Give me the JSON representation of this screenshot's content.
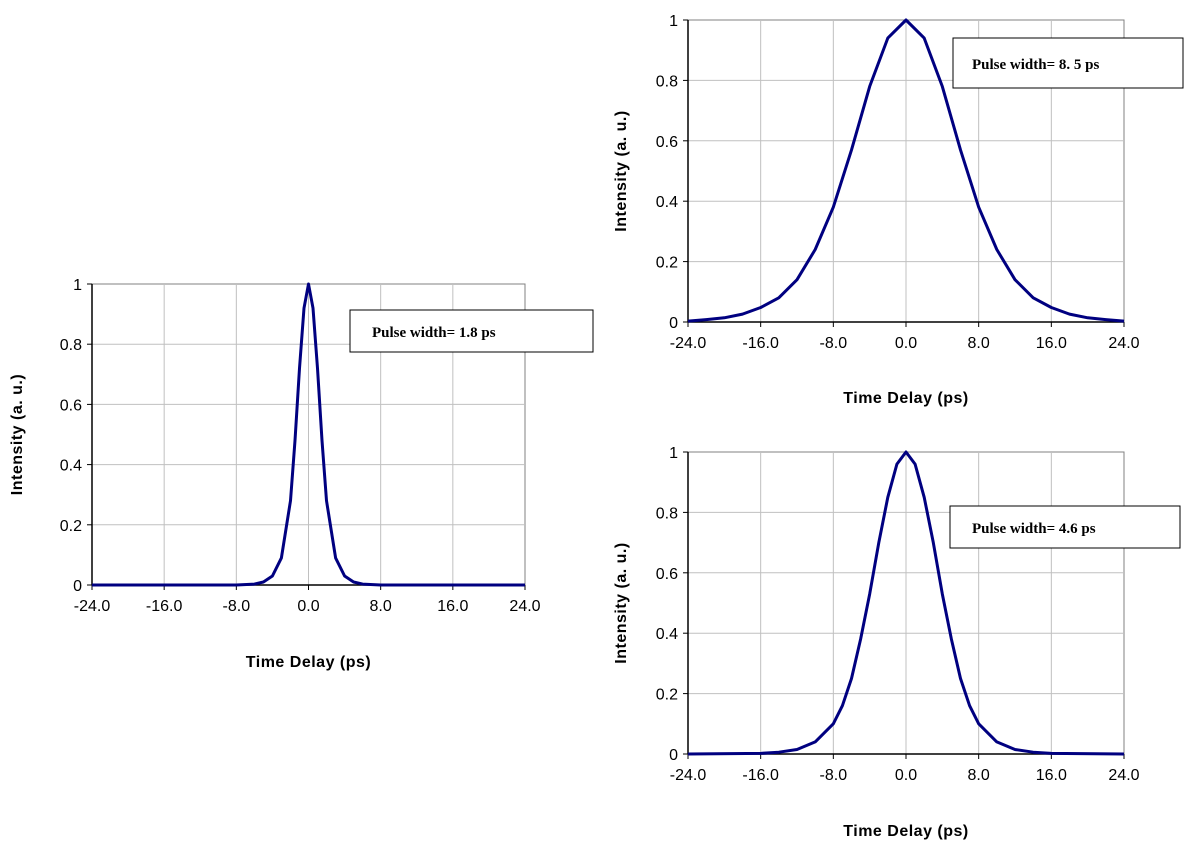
{
  "chart_data": [
    {
      "type": "line",
      "xlabel": "Time Delay (ps)",
      "ylabel": "Intensity (a. u.)",
      "xlim": [
        -24,
        24
      ],
      "ylim": [
        0,
        1
      ],
      "xticks": [
        "-24.0",
        "-16.0",
        "-8.0",
        "0.0",
        "8.0",
        "16.0",
        "24.0"
      ],
      "yticks": [
        "0",
        "0.2",
        "0.4",
        "0.6",
        "0.8",
        "1"
      ],
      "grid": true,
      "annotation": "Pulse width= 1.8 ps",
      "line_color": "#000080",
      "series": [
        {
          "x": [
            -24,
            -8,
            -6,
            -5,
            -4,
            -3,
            -2,
            -1.5,
            -1,
            -0.5,
            0,
            0.5,
            1,
            1.5,
            2,
            3,
            4,
            5,
            6,
            8,
            24
          ],
          "y": [
            0,
            0,
            0.003,
            0.01,
            0.03,
            0.09,
            0.28,
            0.48,
            0.72,
            0.92,
            1,
            0.92,
            0.72,
            0.48,
            0.28,
            0.09,
            0.03,
            0.01,
            0.003,
            0,
            0
          ]
        }
      ]
    },
    {
      "type": "line",
      "xlabel": "Time Delay (ps)",
      "ylabel": "Intensity (a. u.)",
      "xlim": [
        -24,
        24
      ],
      "ylim": [
        0,
        1
      ],
      "xticks": [
        "-24.0",
        "-16.0",
        "-8.0",
        "0.0",
        "8.0",
        "16.0",
        "24.0"
      ],
      "yticks": [
        "0",
        "0.2",
        "0.4",
        "0.6",
        "0.8",
        "1"
      ],
      "grid": true,
      "annotation": "Pulse width= 8. 5 ps",
      "line_color": "#000080",
      "series": [
        {
          "x": [
            -24,
            -22,
            -20,
            -18,
            -16,
            -14,
            -12,
            -10,
            -8,
            -6,
            -4,
            -2,
            0,
            2,
            4,
            6,
            8,
            10,
            12,
            14,
            16,
            18,
            20,
            22,
            24
          ],
          "y": [
            0.003,
            0.008,
            0.014,
            0.026,
            0.048,
            0.08,
            0.14,
            0.24,
            0.38,
            0.57,
            0.78,
            0.94,
            1,
            0.94,
            0.78,
            0.57,
            0.38,
            0.24,
            0.14,
            0.08,
            0.048,
            0.026,
            0.014,
            0.008,
            0.003
          ]
        }
      ]
    },
    {
      "type": "line",
      "xlabel": "Time Delay (ps)",
      "ylabel": "Intensity (a. u.)",
      "xlim": [
        -24,
        24
      ],
      "ylim": [
        0,
        1
      ],
      "xticks": [
        "-24.0",
        "-16.0",
        "-8.0",
        "0.0",
        "8.0",
        "16.0",
        "24.0"
      ],
      "yticks": [
        "0",
        "0.2",
        "0.4",
        "0.6",
        "0.8",
        "1"
      ],
      "grid": true,
      "annotation": "Pulse width= 4.6 ps",
      "line_color": "#000080",
      "series": [
        {
          "x": [
            -24,
            -16,
            -14,
            -12,
            -10,
            -8,
            -7,
            -6,
            -5,
            -4,
            -3,
            -2,
            -1,
            0,
            1,
            2,
            3,
            4,
            5,
            6,
            7,
            8,
            10,
            12,
            14,
            16,
            24
          ],
          "y": [
            0,
            0.002,
            0.006,
            0.015,
            0.04,
            0.1,
            0.16,
            0.25,
            0.38,
            0.53,
            0.7,
            0.85,
            0.96,
            1,
            0.96,
            0.85,
            0.7,
            0.53,
            0.38,
            0.25,
            0.16,
            0.1,
            0.04,
            0.015,
            0.006,
            0.002,
            0
          ]
        }
      ]
    }
  ]
}
